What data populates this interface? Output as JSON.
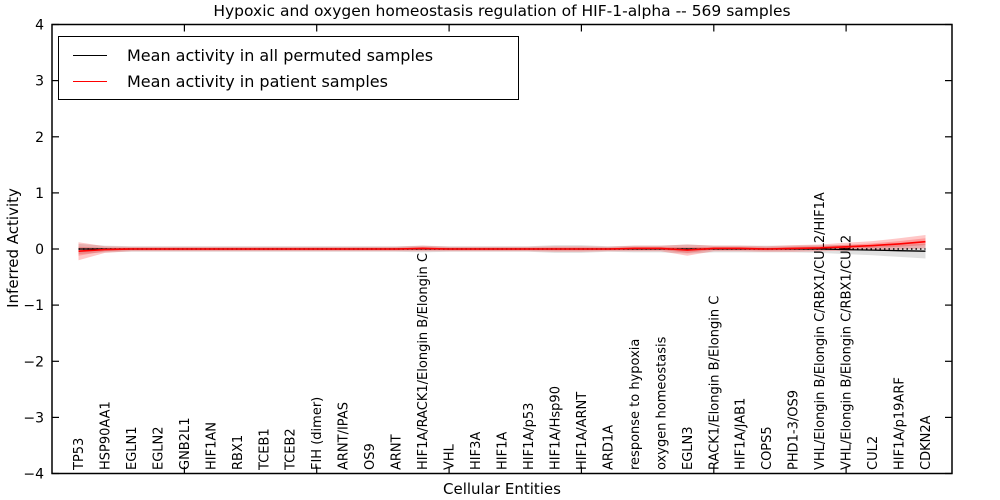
{
  "figure": {
    "title": "Hypoxic and oxygen homeostasis regulation of HIF-1-alpha -- 569 samples"
  },
  "chart_data": {
    "type": "line",
    "title": "Hypoxic and oxygen homeostasis regulation of HIF-1-alpha -- 569 samples",
    "xlabel": "Cellular Entities",
    "ylabel": "Inferred Activity",
    "ylim": [
      -4,
      4
    ],
    "xlim": [
      0,
      34
    ],
    "grid": false,
    "legend_position": "upper left",
    "yticks": [
      4,
      3,
      2,
      1,
      0,
      -1,
      -2,
      -3,
      -4
    ],
    "yticklabels": [
      "4",
      "3",
      "2",
      "1",
      "0",
      "−1",
      "−2",
      "−3",
      "−4"
    ],
    "xtick_positions": [
      5,
      10,
      15,
      20,
      25,
      30
    ],
    "categories": [
      "TP53",
      "HSP90AA1",
      "EGLN1",
      "EGLN2",
      "GNB2L1",
      "HIF1AN",
      "RBX1",
      "TCEB1",
      "TCEB2",
      "FIH (dimer)",
      "ARNT/IPAS",
      "OS9",
      "ARNT",
      "HIF1A/RACK1/Elongin B/Elongin C",
      "VHL",
      "HIF3A",
      "HIF1A",
      "HIF1A/p53",
      "HIF1A/Hsp90",
      "HIF1A/ARNT",
      "ARD1A",
      "response to hypoxia",
      "oxygen homeostasis",
      "EGLN3",
      "RACK1/Elongin B/Elongin C",
      "HIF1A/JAB1",
      "COPS5",
      "PHD1-3/OS9",
      "VHL/Elongin B/Elongin C/RBX1/CUL2/HIF1A",
      "VHL/Elongin B/Elongin C/RBX1/CUL2",
      "CUL2",
      "HIF1A/p19ARF",
      "CDKN2A"
    ],
    "reference_line": {
      "y": 0,
      "style": "dotted",
      "color": "#000000"
    },
    "series": [
      {
        "name": "Mean activity in all permuted samples",
        "color": "#000000",
        "line_width": 1.3,
        "values": [
          0,
          0,
          0,
          0,
          0,
          0,
          0,
          0,
          0,
          0,
          0,
          0,
          0,
          0,
          0,
          0,
          0,
          0,
          0,
          0,
          0,
          0,
          0,
          0,
          0,
          0,
          0,
          0,
          0,
          -0.01,
          -0.02,
          -0.03,
          -0.04
        ],
        "band_halfwidths": [
          0.09,
          0.06,
          0.05,
          0.05,
          0.05,
          0.05,
          0.05,
          0.05,
          0.05,
          0.05,
          0.05,
          0.05,
          0.05,
          0.06,
          0.05,
          0.05,
          0.05,
          0.05,
          0.07,
          0.07,
          0.05,
          0.06,
          0.06,
          0.08,
          0.06,
          0.06,
          0.06,
          0.06,
          0.07,
          0.08,
          0.09,
          0.11,
          0.13
        ],
        "band_color": "#000000",
        "band_opacity": 0.12
      },
      {
        "name": "Mean activity in patient samples",
        "color": "#ff0000",
        "line_width": 1.6,
        "values": [
          -0.04,
          -0.01,
          0,
          0,
          0,
          0,
          0,
          0,
          0,
          0,
          0,
          0,
          0,
          0.01,
          0,
          0,
          0,
          0,
          0,
          0,
          0,
          0.01,
          0.01,
          -0.02,
          0.01,
          0.01,
          0,
          0.01,
          0.02,
          0.04,
          0.06,
          0.09,
          0.13
        ],
        "band_halfwidths": [
          0.16,
          0.06,
          0.04,
          0.04,
          0.04,
          0.04,
          0.04,
          0.04,
          0.04,
          0.04,
          0.04,
          0.04,
          0.04,
          0.05,
          0.04,
          0.04,
          0.04,
          0.04,
          0.05,
          0.05,
          0.04,
          0.05,
          0.05,
          0.1,
          0.05,
          0.05,
          0.05,
          0.06,
          0.06,
          0.07,
          0.08,
          0.1,
          0.12
        ],
        "band_inner_fraction": 0.5,
        "band_color": "#ff0000",
        "band_opacity": 0.22
      }
    ],
    "legend": [
      {
        "label": "Mean activity in all permuted samples",
        "color": "#000000"
      },
      {
        "label": "Mean activity in patient samples",
        "color": "#ff0000"
      }
    ]
  }
}
